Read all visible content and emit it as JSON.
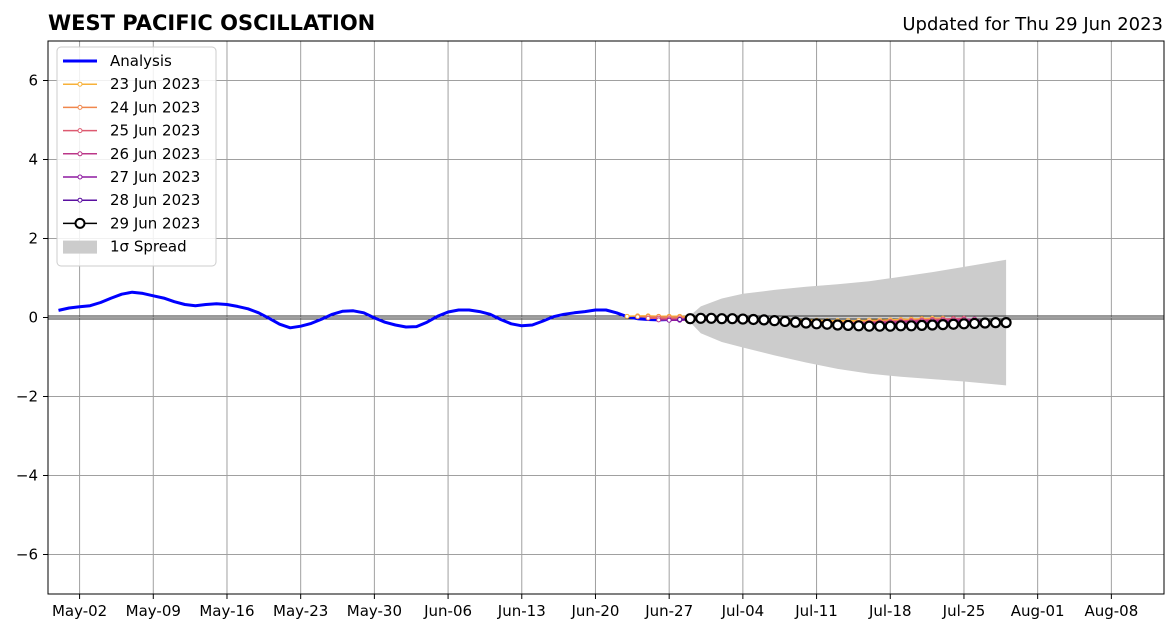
{
  "chart_data": {
    "type": "line",
    "title": "WEST PACIFIC OSCILLATION",
    "updated": "Updated for Thu 29 Jun 2023",
    "xlabel": "",
    "ylabel": "",
    "xlim": [
      "2023-04-29",
      "2023-08-13"
    ],
    "ylim": [
      -7,
      7
    ],
    "grid": true,
    "legend_position": "top-left",
    "x_ticks": [
      {
        "date": "2023-05-02",
        "label": "May-02"
      },
      {
        "date": "2023-05-09",
        "label": "May-09"
      },
      {
        "date": "2023-05-16",
        "label": "May-16"
      },
      {
        "date": "2023-05-23",
        "label": "May-23"
      },
      {
        "date": "2023-05-30",
        "label": "May-30"
      },
      {
        "date": "2023-06-06",
        "label": "Jun-06"
      },
      {
        "date": "2023-06-13",
        "label": "Jun-13"
      },
      {
        "date": "2023-06-20",
        "label": "Jun-20"
      },
      {
        "date": "2023-06-27",
        "label": "Jun-27"
      },
      {
        "date": "2023-07-04",
        "label": "Jul-04"
      },
      {
        "date": "2023-07-11",
        "label": "Jul-11"
      },
      {
        "date": "2023-07-18",
        "label": "Jul-18"
      },
      {
        "date": "2023-07-25",
        "label": "Jul-25"
      },
      {
        "date": "2023-08-01",
        "label": "Aug-01"
      },
      {
        "date": "2023-08-08",
        "label": "Aug-08"
      }
    ],
    "y_ticks": [
      {
        "value": 6,
        "label": "6"
      },
      {
        "value": 4,
        "label": "4"
      },
      {
        "value": 2,
        "label": "2"
      },
      {
        "value": 0,
        "label": "0"
      },
      {
        "value": -2,
        "label": "−2"
      },
      {
        "value": -4,
        "label": "−4"
      },
      {
        "value": -6,
        "label": "−6"
      }
    ],
    "legend": [
      {
        "label": "Analysis",
        "color": "#0000ff",
        "kind": "thick-line"
      },
      {
        "label": "23 Jun 2023",
        "color": "#f7b139",
        "kind": "small-marker"
      },
      {
        "label": "24 Jun 2023",
        "color": "#f0874d",
        "kind": "small-marker"
      },
      {
        "label": "25 Jun 2023",
        "color": "#dd5a70",
        "kind": "small-marker"
      },
      {
        "label": "26 Jun 2023",
        "color": "#bb3788",
        "kind": "small-marker"
      },
      {
        "label": "27 Jun 2023",
        "color": "#8d1aa0",
        "kind": "small-marker"
      },
      {
        "label": "28 Jun 2023",
        "color": "#5a0fa0",
        "kind": "small-marker"
      },
      {
        "label": "29 Jun 2023",
        "color": "#000000",
        "kind": "big-marker"
      },
      {
        "label": "1σ Spread",
        "color": "#cccccc",
        "kind": "patch"
      }
    ],
    "analysis": {
      "name": "Analysis",
      "color": "#0000ff",
      "x": [
        "2023-04-30",
        "2023-05-01",
        "2023-05-02",
        "2023-05-03",
        "2023-05-04",
        "2023-05-05",
        "2023-05-06",
        "2023-05-07",
        "2023-05-08",
        "2023-05-09",
        "2023-05-10",
        "2023-05-11",
        "2023-05-12",
        "2023-05-13",
        "2023-05-14",
        "2023-05-15",
        "2023-05-16",
        "2023-05-17",
        "2023-05-18",
        "2023-05-19",
        "2023-05-20",
        "2023-05-21",
        "2023-05-22",
        "2023-05-23",
        "2023-05-24",
        "2023-05-25",
        "2023-05-26",
        "2023-05-27",
        "2023-05-28",
        "2023-05-29",
        "2023-05-30",
        "2023-05-31",
        "2023-06-01",
        "2023-06-02",
        "2023-06-03",
        "2023-06-04",
        "2023-06-05",
        "2023-06-06",
        "2023-06-07",
        "2023-06-08",
        "2023-06-09",
        "2023-06-10",
        "2023-06-11",
        "2023-06-12",
        "2023-06-13",
        "2023-06-14",
        "2023-06-15",
        "2023-06-16",
        "2023-06-17",
        "2023-06-18",
        "2023-06-19",
        "2023-06-20",
        "2023-06-21",
        "2023-06-22",
        "2023-06-23",
        "2023-06-24",
        "2023-06-25",
        "2023-06-26",
        "2023-06-27",
        "2023-06-28",
        "2023-06-29"
      ],
      "y": [
        0.18,
        0.24,
        0.27,
        0.3,
        0.38,
        0.49,
        0.59,
        0.64,
        0.61,
        0.55,
        0.49,
        0.4,
        0.33,
        0.3,
        0.33,
        0.35,
        0.33,
        0.28,
        0.22,
        0.12,
        -0.02,
        -0.17,
        -0.26,
        -0.22,
        -0.15,
        -0.04,
        0.08,
        0.16,
        0.17,
        0.12,
        -0.01,
        -0.12,
        -0.19,
        -0.24,
        -0.23,
        -0.12,
        0.03,
        0.14,
        0.19,
        0.19,
        0.15,
        0.08,
        -0.05,
        -0.16,
        -0.21,
        -0.19,
        -0.09,
        0.02,
        0.08,
        0.12,
        0.15,
        0.19,
        0.19,
        0.12,
        0.02,
        -0.03,
        -0.05,
        -0.06,
        -0.05,
        -0.04,
        -0.03
      ]
    },
    "forecasts": [
      {
        "name": "23 Jun 2023",
        "color": "#f7b139",
        "x": [
          "2023-06-23",
          "2023-06-24",
          "2023-06-25",
          "2023-06-26",
          "2023-06-27",
          "2023-06-28",
          "2023-06-29",
          "2023-06-30",
          "2023-07-01",
          "2023-07-02",
          "2023-07-03",
          "2023-07-04",
          "2023-07-05",
          "2023-07-06",
          "2023-07-07",
          "2023-07-08",
          "2023-07-09",
          "2023-07-10",
          "2023-07-11",
          "2023-07-12",
          "2023-07-13",
          "2023-07-14",
          "2023-07-15",
          "2023-07-16",
          "2023-07-17",
          "2023-07-18",
          "2023-07-19",
          "2023-07-20",
          "2023-07-21",
          "2023-07-22",
          "2023-07-23"
        ],
        "y": [
          0.03,
          0.04,
          0.04,
          0.03,
          0.03,
          0.03,
          0.02,
          0.02,
          0.01,
          0.0,
          0.0,
          -0.01,
          -0.02,
          -0.03,
          -0.04,
          -0.05,
          -0.06,
          -0.07,
          -0.07,
          -0.08,
          -0.08,
          -0.08,
          -0.08,
          -0.07,
          -0.07,
          -0.06,
          -0.05,
          -0.04,
          -0.03,
          -0.02,
          -0.02
        ]
      },
      {
        "name": "24 Jun 2023",
        "color": "#f0874d",
        "x": [
          "2023-06-24",
          "2023-06-25",
          "2023-06-26",
          "2023-06-27",
          "2023-06-28",
          "2023-06-29",
          "2023-06-30",
          "2023-07-01",
          "2023-07-02",
          "2023-07-03",
          "2023-07-04",
          "2023-07-05",
          "2023-07-06",
          "2023-07-07",
          "2023-07-08",
          "2023-07-09",
          "2023-07-10",
          "2023-07-11",
          "2023-07-12",
          "2023-07-13",
          "2023-07-14",
          "2023-07-15",
          "2023-07-16",
          "2023-07-17",
          "2023-07-18",
          "2023-07-19",
          "2023-07-20",
          "2023-07-21",
          "2023-07-22",
          "2023-07-23",
          "2023-07-24"
        ],
        "y": [
          0.02,
          0.02,
          0.02,
          0.01,
          0.01,
          0.0,
          0.0,
          -0.01,
          -0.02,
          -0.03,
          -0.04,
          -0.05,
          -0.06,
          -0.07,
          -0.08,
          -0.09,
          -0.1,
          -0.11,
          -0.11,
          -0.12,
          -0.12,
          -0.12,
          -0.11,
          -0.1,
          -0.09,
          -0.08,
          -0.07,
          -0.06,
          -0.05,
          -0.04,
          -0.03
        ]
      },
      {
        "name": "25 Jun 2023",
        "color": "#dd5a70",
        "x": [
          "2023-06-25",
          "2023-06-26",
          "2023-06-27",
          "2023-06-28",
          "2023-06-29",
          "2023-06-30",
          "2023-07-01",
          "2023-07-02",
          "2023-07-03",
          "2023-07-04",
          "2023-07-05",
          "2023-07-06",
          "2023-07-07",
          "2023-07-08",
          "2023-07-09",
          "2023-07-10",
          "2023-07-11",
          "2023-07-12",
          "2023-07-13",
          "2023-07-14",
          "2023-07-15",
          "2023-07-16",
          "2023-07-17",
          "2023-07-18",
          "2023-07-19",
          "2023-07-20",
          "2023-07-21",
          "2023-07-22",
          "2023-07-23",
          "2023-07-24",
          "2023-07-25"
        ],
        "y": [
          -0.02,
          -0.02,
          -0.03,
          -0.03,
          -0.04,
          -0.04,
          -0.05,
          -0.06,
          -0.07,
          -0.08,
          -0.09,
          -0.1,
          -0.11,
          -0.12,
          -0.13,
          -0.13,
          -0.14,
          -0.14,
          -0.14,
          -0.13,
          -0.13,
          -0.12,
          -0.11,
          -0.1,
          -0.09,
          -0.08,
          -0.06,
          -0.05,
          -0.04,
          -0.03,
          -0.02
        ]
      },
      {
        "name": "26 Jun 2023",
        "color": "#bb3788",
        "x": [
          "2023-06-26",
          "2023-06-27",
          "2023-06-28",
          "2023-06-29",
          "2023-06-30",
          "2023-07-01",
          "2023-07-02",
          "2023-07-03",
          "2023-07-04",
          "2023-07-05",
          "2023-07-06",
          "2023-07-07",
          "2023-07-08",
          "2023-07-09",
          "2023-07-10",
          "2023-07-11",
          "2023-07-12",
          "2023-07-13",
          "2023-07-14",
          "2023-07-15",
          "2023-07-16",
          "2023-07-17",
          "2023-07-18",
          "2023-07-19",
          "2023-07-20",
          "2023-07-21",
          "2023-07-22",
          "2023-07-23",
          "2023-07-24",
          "2023-07-25",
          "2023-07-26"
        ],
        "y": [
          -0.06,
          -0.06,
          -0.06,
          -0.06,
          -0.06,
          -0.07,
          -0.07,
          -0.08,
          -0.09,
          -0.1,
          -0.11,
          -0.12,
          -0.13,
          -0.14,
          -0.14,
          -0.15,
          -0.15,
          -0.15,
          -0.15,
          -0.14,
          -0.14,
          -0.13,
          -0.12,
          -0.11,
          -0.1,
          -0.09,
          -0.08,
          -0.07,
          -0.06,
          -0.05,
          -0.04
        ]
      },
      {
        "name": "27 Jun 2023",
        "color": "#8d1aa0",
        "x": [
          "2023-06-27",
          "2023-06-28",
          "2023-06-29",
          "2023-06-30",
          "2023-07-01",
          "2023-07-02",
          "2023-07-03",
          "2023-07-04",
          "2023-07-05",
          "2023-07-06",
          "2023-07-07",
          "2023-07-08",
          "2023-07-09",
          "2023-07-10",
          "2023-07-11",
          "2023-07-12",
          "2023-07-13",
          "2023-07-14",
          "2023-07-15",
          "2023-07-16",
          "2023-07-17",
          "2023-07-18",
          "2023-07-19",
          "2023-07-20",
          "2023-07-21",
          "2023-07-22",
          "2023-07-23",
          "2023-07-24",
          "2023-07-25",
          "2023-07-26",
          "2023-07-27"
        ],
        "y": [
          -0.07,
          -0.07,
          -0.06,
          -0.06,
          -0.06,
          -0.06,
          -0.07,
          -0.07,
          -0.08,
          -0.09,
          -0.1,
          -0.11,
          -0.12,
          -0.13,
          -0.14,
          -0.15,
          -0.15,
          -0.16,
          -0.16,
          -0.16,
          -0.16,
          -0.15,
          -0.15,
          -0.14,
          -0.13,
          -0.12,
          -0.11,
          -0.1,
          -0.09,
          -0.08,
          -0.07
        ]
      },
      {
        "name": "28 Jun 2023",
        "color": "#5a0fa0",
        "x": [
          "2023-06-28",
          "2023-06-29",
          "2023-06-30",
          "2023-07-01",
          "2023-07-02",
          "2023-07-03",
          "2023-07-04",
          "2023-07-05",
          "2023-07-06",
          "2023-07-07",
          "2023-07-08",
          "2023-07-09",
          "2023-07-10",
          "2023-07-11",
          "2023-07-12",
          "2023-07-13",
          "2023-07-14",
          "2023-07-15",
          "2023-07-16",
          "2023-07-17",
          "2023-07-18",
          "2023-07-19",
          "2023-07-20",
          "2023-07-21",
          "2023-07-22",
          "2023-07-23",
          "2023-07-24",
          "2023-07-25",
          "2023-07-26",
          "2023-07-27",
          "2023-07-28"
        ],
        "y": [
          -0.05,
          -0.05,
          -0.04,
          -0.04,
          -0.04,
          -0.05,
          -0.05,
          -0.06,
          -0.07,
          -0.08,
          -0.09,
          -0.11,
          -0.12,
          -0.13,
          -0.14,
          -0.15,
          -0.16,
          -0.17,
          -0.17,
          -0.18,
          -0.18,
          -0.18,
          -0.17,
          -0.17,
          -0.16,
          -0.15,
          -0.14,
          -0.13,
          -0.12,
          -0.11,
          -0.1
        ]
      },
      {
        "name": "29 Jun 2023",
        "color": "#000000",
        "x": [
          "2023-06-29",
          "2023-06-30",
          "2023-07-01",
          "2023-07-02",
          "2023-07-03",
          "2023-07-04",
          "2023-07-05",
          "2023-07-06",
          "2023-07-07",
          "2023-07-08",
          "2023-07-09",
          "2023-07-10",
          "2023-07-11",
          "2023-07-12",
          "2023-07-13",
          "2023-07-14",
          "2023-07-15",
          "2023-07-16",
          "2023-07-17",
          "2023-07-18",
          "2023-07-19",
          "2023-07-20",
          "2023-07-21",
          "2023-07-22",
          "2023-07-23",
          "2023-07-24",
          "2023-07-25",
          "2023-07-26",
          "2023-07-27",
          "2023-07-28",
          "2023-07-29"
        ],
        "y": [
          -0.03,
          -0.02,
          -0.02,
          -0.03,
          -0.03,
          -0.04,
          -0.05,
          -0.06,
          -0.08,
          -0.1,
          -0.12,
          -0.14,
          -0.16,
          -0.17,
          -0.19,
          -0.2,
          -0.21,
          -0.22,
          -0.22,
          -0.22,
          -0.21,
          -0.21,
          -0.2,
          -0.19,
          -0.18,
          -0.17,
          -0.16,
          -0.15,
          -0.14,
          -0.13,
          -0.13
        ]
      }
    ],
    "spread": {
      "name": "1σ Spread",
      "color": "#cccccc",
      "x": [
        "2023-06-29",
        "2023-06-30",
        "2023-07-02",
        "2023-07-04",
        "2023-07-07",
        "2023-07-10",
        "2023-07-13",
        "2023-07-16",
        "2023-07-19",
        "2023-07-22",
        "2023-07-25",
        "2023-07-29"
      ],
      "upper": [
        0.05,
        0.28,
        0.48,
        0.6,
        0.7,
        0.78,
        0.84,
        0.92,
        1.03,
        1.15,
        1.28,
        1.46
      ],
      "lower": [
        -0.12,
        -0.4,
        -0.62,
        -0.76,
        -0.96,
        -1.14,
        -1.3,
        -1.42,
        -1.5,
        -1.56,
        -1.62,
        -1.72
      ]
    }
  }
}
